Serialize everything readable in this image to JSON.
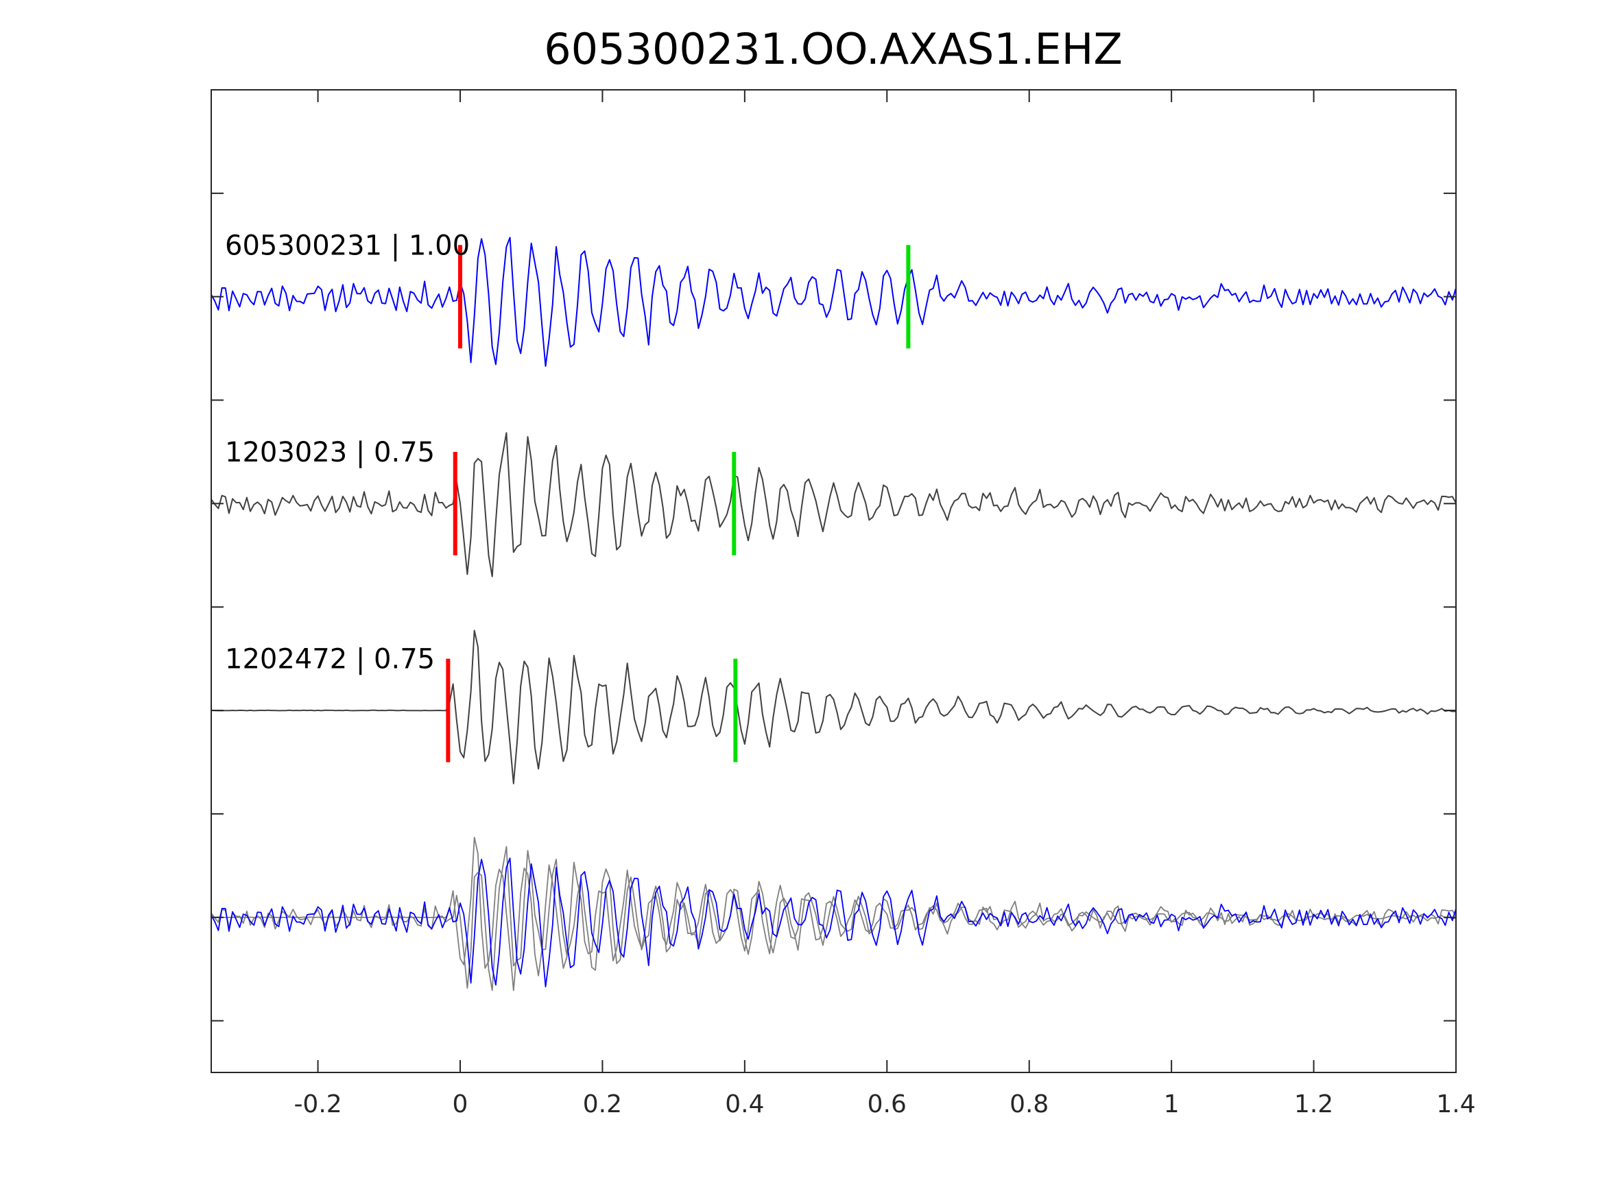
{
  "chart_data": {
    "type": "line",
    "title": "605300231.OO.AXAS1.EHZ",
    "xlabel": "",
    "ylabel": "",
    "xlim": [
      -0.35,
      1.4
    ],
    "ylim": [
      -1.5,
      8
    ],
    "x_ticks": [
      -0.2,
      0,
      0.2,
      0.4,
      0.6,
      0.8,
      1,
      1.2,
      1.4
    ],
    "x_tick_labels": [
      "-0.2",
      "0",
      "0.2",
      "0.4",
      "0.6",
      "0.8",
      "1",
      "1.2",
      "1.4"
    ],
    "y_ticks": [
      -1,
      0,
      1,
      2,
      3,
      4,
      5,
      6,
      7
    ],
    "y_tick_labels": [],
    "grid": false,
    "colors": {
      "target": "#0000ff",
      "neighbor": "#404040",
      "overlay_neighbor": "#7f7f7f",
      "p_pick": "#ff0000",
      "s_pick": "#00e000"
    },
    "series": [
      {
        "label": "605300231 | 1.00",
        "offset": 6,
        "color": "#0000ff",
        "p_pick": 0.0,
        "s_pick": 0.63,
        "noise": 0.09,
        "env": 0.5,
        "onset": -0.005,
        "quiet_pre": false,
        "seed": 11
      },
      {
        "label": "1203023 | 0.75",
        "offset": 4,
        "color": "#404040",
        "p_pick": -0.007,
        "s_pick": 0.385,
        "noise": 0.07,
        "env": 0.53,
        "onset": -0.01,
        "quiet_pre": false,
        "seed": 23
      },
      {
        "label": "1202472 | 0.75",
        "offset": 2,
        "color": "#404040",
        "p_pick": -0.017,
        "s_pick": 0.387,
        "noise": 0.005,
        "env": 0.53,
        "onset": -0.015,
        "quiet_pre": true,
        "seed": 37
      }
    ],
    "overlay": {
      "offset": 0,
      "traces": [
        {
          "ref": 0,
          "color": "#0000ff"
        },
        {
          "ref": 1,
          "color": "#7f7f7f"
        },
        {
          "ref": 2,
          "color": "#7f7f7f"
        }
      ]
    }
  }
}
